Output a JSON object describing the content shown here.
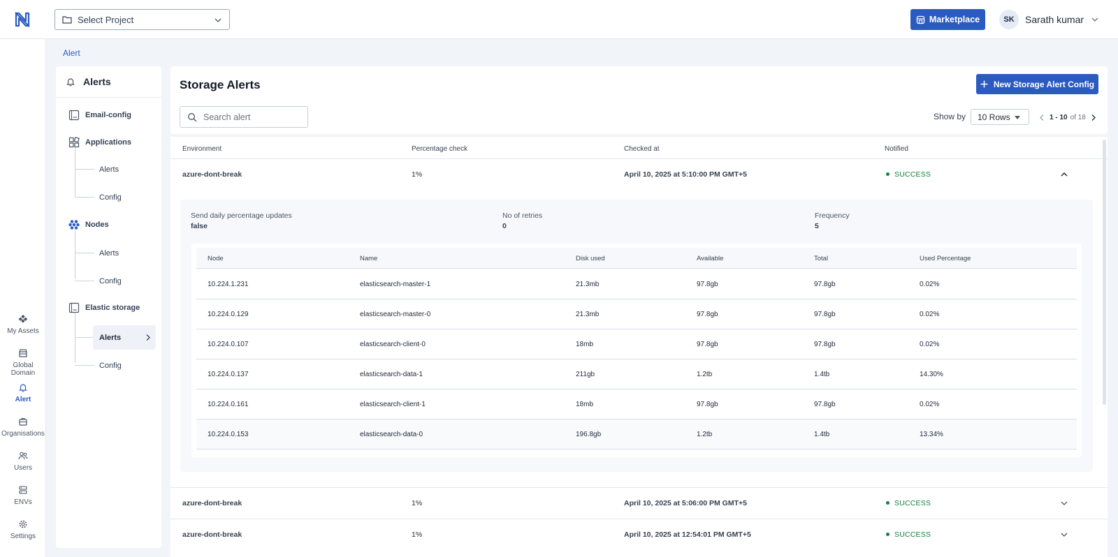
{
  "header": {
    "project_select": "Select Project",
    "marketplace_label": "Marketplace",
    "user_initials": "SK",
    "user_name": "Sarath kumar"
  },
  "rail": {
    "items": [
      {
        "label": "My Assets",
        "icon": "assets-icon"
      },
      {
        "label": "Global Domain",
        "icon": "global-domain-icon"
      },
      {
        "label": "Alert",
        "icon": "bell-icon",
        "active": true
      },
      {
        "label": "Organisations",
        "icon": "organisation-icon"
      },
      {
        "label": "Users",
        "icon": "users-icon"
      },
      {
        "label": "ENVs",
        "icon": "server-icon"
      },
      {
        "label": "Settings",
        "icon": "gear-icon"
      }
    ]
  },
  "breadcrumb": "Alert",
  "side_menu": {
    "title": "Alerts",
    "email_config": "Email-config",
    "applications": {
      "label": "Applications",
      "alerts": "Alerts",
      "config": "Config"
    },
    "nodes": {
      "label": "Nodes",
      "alerts": "Alerts",
      "config": "Config"
    },
    "elastic_storage": {
      "label": "Elastic storage",
      "alerts": "Alerts",
      "config": "Config"
    }
  },
  "main": {
    "title": "Storage Alerts",
    "new_button": "New Storage Alert Config",
    "search_placeholder": "Search alert",
    "show_by_label": "Show by",
    "rows_value": "10 Rows",
    "pager_range": "1 - 10",
    "pager_of": "of 18"
  },
  "table": {
    "headers": {
      "environment": "Environment",
      "percentage": "Percentage check",
      "checked_at": "Checked at",
      "notified": "Notified"
    },
    "rows": [
      {
        "environment": "azure-dont-break",
        "percentage": "1%",
        "checked_at": "April 10, 2025 at 5:10:00 PM GMT+5",
        "notified": "SUCCESS"
      },
      {
        "environment": "azure-dont-break",
        "percentage": "1%",
        "checked_at": "April 10, 2025 at 5:06:00 PM GMT+5",
        "notified": "SUCCESS"
      },
      {
        "environment": "azure-dont-break",
        "percentage": "1%",
        "checked_at": "April 10, 2025 at 12:54:01 PM GMT+5",
        "notified": "SUCCESS"
      }
    ],
    "expanded": {
      "daily_label": "Send daily percentage updates",
      "daily_value": "false",
      "retries_label": "No of retries",
      "retries_value": "0",
      "frequency_label": "Frequency",
      "frequency_value": "5",
      "node_headers": {
        "node": "Node",
        "name": "Name",
        "disk_used": "Disk used",
        "available": "Available",
        "total": "Total",
        "used_pct": "Used Percentage"
      },
      "nodes": [
        {
          "node": "10.224.1.231",
          "name": "elasticsearch-master-1",
          "disk_used": "21.3mb",
          "available": "97.8gb",
          "total": "97.8gb",
          "used_pct": "0.02%"
        },
        {
          "node": "10.224.0.129",
          "name": "elasticsearch-master-0",
          "disk_used": "21.3mb",
          "available": "97.8gb",
          "total": "97.8gb",
          "used_pct": "0.02%"
        },
        {
          "node": "10.224.0.107",
          "name": "elasticsearch-client-0",
          "disk_used": "18mb",
          "available": "97.8gb",
          "total": "97.8gb",
          "used_pct": "0.02%"
        },
        {
          "node": "10.224.0.137",
          "name": "elasticsearch-data-1",
          "disk_used": "211gb",
          "available": "1.2tb",
          "total": "1.4tb",
          "used_pct": "14.30%"
        },
        {
          "node": "10.224.0.161",
          "name": "elasticsearch-client-1",
          "disk_used": "18mb",
          "available": "97.8gb",
          "total": "97.8gb",
          "used_pct": "0.02%"
        },
        {
          "node": "10.224.0.153",
          "name": "elasticsearch-data-0",
          "disk_used": "196.8gb",
          "available": "1.2tb",
          "total": "1.4tb",
          "used_pct": "13.34%"
        }
      ]
    }
  },
  "colors": {
    "primary": "#2c5bc0",
    "success": "#15803d",
    "background": "#f1f4f9"
  }
}
